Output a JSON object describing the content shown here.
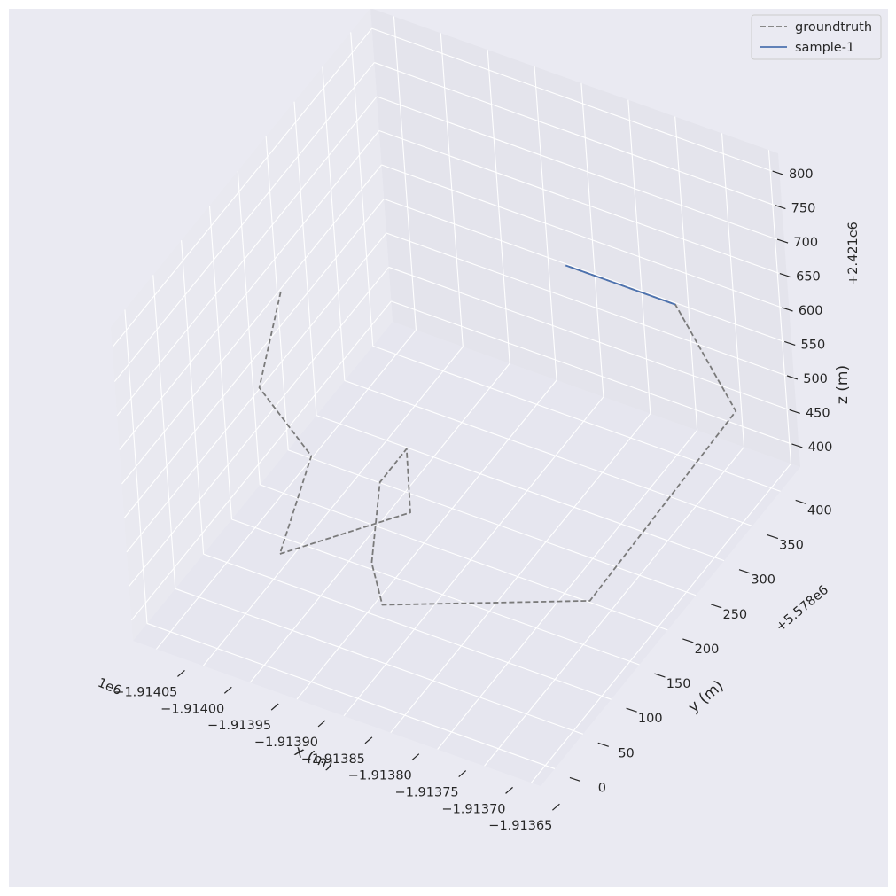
{
  "chart_data": {
    "type": "line3d",
    "xlabel": "x (m)",
    "ylabel": "y (m)",
    "zlabel": "z (m)",
    "x_offset_label": "1e6",
    "y_offset_label": "+5.578e6",
    "z_offset_label": "+2.421e6",
    "x_ticks": [
      "−1.91405",
      "−1.91400",
      "−1.91395",
      "−1.91390",
      "−1.91385",
      "−1.91380",
      "−1.91375",
      "−1.91370",
      "−1.91365"
    ],
    "y_ticks": [
      "0",
      "50",
      "100",
      "150",
      "200",
      "250",
      "300",
      "350",
      "400"
    ],
    "z_ticks": [
      "400",
      "450",
      "500",
      "550",
      "600",
      "650",
      "700",
      "750",
      "800"
    ],
    "xlim": [
      -1914075,
      -1913640
    ],
    "ylim": [
      -25,
      435
    ],
    "zlim": [
      370,
      830
    ],
    "grid": true,
    "legend_position": "top-right",
    "series": [
      {
        "name": "groundtruth",
        "style": "dashed",
        "color": "#7a7a7a",
        "points": [
          [
            -1914048,
            216,
            650
          ],
          [
            -1914048,
            170,
            556
          ],
          [
            -1913987,
            156,
            500
          ],
          [
            -1913982,
            86,
            430
          ],
          [
            -1913887,
            162,
            460
          ],
          [
            -1913913,
            202,
            500
          ],
          [
            -1913930,
            180,
            465
          ],
          [
            -1913905,
            120,
            420
          ],
          [
            -1913857,
            61,
            442
          ],
          [
            -1913704,
            172,
            410
          ],
          [
            -1913676,
            390,
            480
          ],
          [
            -1913738,
            396,
            600
          ],
          [
            -1913800,
            396,
            600
          ],
          [
            -1913855,
            396,
            600
          ]
        ]
      },
      {
        "name": "sample-1",
        "style": "solid",
        "color": "#4c72b0",
        "points": [
          [
            -1913738,
            396,
            600
          ],
          [
            -1913800,
            396,
            600
          ],
          [
            -1913855,
            396,
            600
          ]
        ]
      }
    ]
  }
}
